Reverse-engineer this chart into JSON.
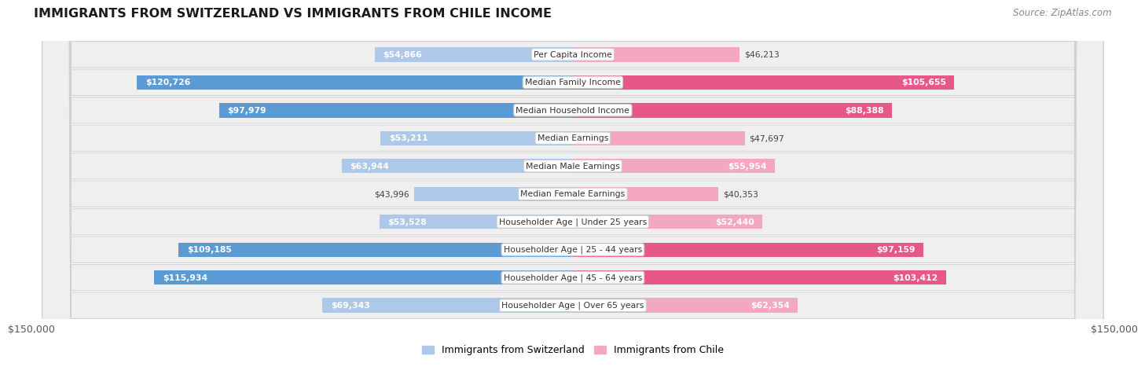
{
  "title": "IMMIGRANTS FROM SWITZERLAND VS IMMIGRANTS FROM CHILE INCOME",
  "source": "Source: ZipAtlas.com",
  "categories": [
    "Per Capita Income",
    "Median Family Income",
    "Median Household Income",
    "Median Earnings",
    "Median Male Earnings",
    "Median Female Earnings",
    "Householder Age | Under 25 years",
    "Householder Age | 25 - 44 years",
    "Householder Age | 45 - 64 years",
    "Householder Age | Over 65 years"
  ],
  "switzerland_values": [
    54866,
    120726,
    97979,
    53211,
    63944,
    43996,
    53528,
    109185,
    115934,
    69343
  ],
  "chile_values": [
    46213,
    105655,
    88388,
    47697,
    55954,
    40353,
    52440,
    97159,
    103412,
    62354
  ],
  "switzerland_labels": [
    "$54,866",
    "$120,726",
    "$97,979",
    "$53,211",
    "$63,944",
    "$43,996",
    "$53,528",
    "$109,185",
    "$115,934",
    "$69,343"
  ],
  "chile_labels": [
    "$46,213",
    "$105,655",
    "$88,388",
    "$47,697",
    "$55,954",
    "$40,353",
    "$52,440",
    "$97,159",
    "$103,412",
    "$62,354"
  ],
  "max_value": 150000,
  "switzerland_color_light": "#adc8e8",
  "switzerland_color_dark": "#5b9bd5",
  "chile_color_light": "#f4a7c0",
  "chile_color_dark": "#e8578a",
  "row_bg_color": "#efefef",
  "row_border_color": "#d0d0d0",
  "background_color": "#ffffff",
  "legend_switzerland": "Immigrants from Switzerland",
  "legend_chile": "Immigrants from Chile",
  "axis_label_left": "$150,000",
  "axis_label_right": "$150,000",
  "sw_threshold": 75000,
  "ch_threshold": 75000
}
